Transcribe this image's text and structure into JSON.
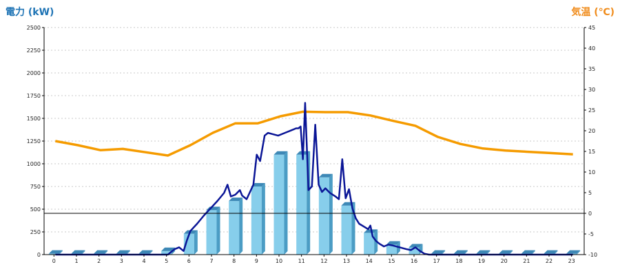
{
  "chart_data": {
    "type": "bar+line",
    "title_left": "電力 (kW)",
    "title_right": "気温 (℃)",
    "colors": {
      "title_left": "#1f74b5",
      "title_right": "#f08c1c",
      "bar_front": "#87ceeb",
      "bar_side": "#4b9cc4",
      "bar_top": "#3d88b6",
      "power_line": "#0a1596",
      "temp_line": "#f59b00",
      "grid": "#c8c8c8",
      "axis": "#000000"
    },
    "x_ticks": [
      "0",
      "1",
      "2",
      "3",
      "4",
      "5",
      "6",
      "7",
      "8",
      "9",
      "10",
      "11",
      "12",
      "13",
      "14",
      "15",
      "16",
      "17",
      "18",
      "19",
      "20",
      "21",
      "22",
      "23"
    ],
    "left_axis": {
      "min": 0,
      "max": 2500,
      "ticks": [
        "0",
        "250",
        "500",
        "750",
        "1000",
        "1250",
        "1500",
        "1750",
        "2000",
        "2250",
        "2500"
      ]
    },
    "right_axis": {
      "min": -10,
      "max": 45,
      "ticks": [
        "-10",
        "-5",
        "0",
        "5",
        "10",
        "15",
        "20",
        "25",
        "30",
        "35",
        "40",
        "45"
      ]
    },
    "hourly_power_bars": {
      "unit": "kW",
      "values": [
        10,
        10,
        10,
        10,
        10,
        40,
        230,
        490,
        590,
        750,
        1100,
        1100,
        850,
        540,
        240,
        110,
        80,
        10,
        10,
        10,
        10,
        10,
        10,
        10
      ]
    },
    "power_line": {
      "unit": "kW",
      "x": [
        0,
        5.0,
        5.3,
        5.5,
        5.7,
        5.85,
        6.0,
        6.3,
        6.6,
        6.9,
        7.2,
        7.5,
        7.65,
        7.8,
        8.0,
        8.2,
        8.3,
        8.5,
        8.8,
        8.95,
        9.1,
        9.3,
        9.45,
        9.6,
        9.9,
        10.2,
        10.5,
        10.7,
        10.8,
        10.9,
        11.0,
        11.1,
        11.25,
        11.4,
        11.55,
        11.7,
        11.85,
        12.0,
        12.2,
        12.45,
        12.6,
        12.75,
        12.9,
        13.05,
        13.2,
        13.35,
        13.5,
        13.7,
        13.9,
        14.0,
        14.1,
        14.25,
        14.4,
        14.6,
        14.8,
        15.0,
        15.3,
        15.6,
        15.8,
        16.0,
        16.2,
        16.4,
        16.6,
        17.0,
        18.0,
        20.0,
        23.0
      ],
      "y": [
        0,
        0,
        60,
        80,
        40,
        160,
        260,
        340,
        430,
        510,
        590,
        680,
        770,
        640,
        660,
        710,
        650,
        610,
        770,
        1100,
        1030,
        1310,
        1340,
        1330,
        1310,
        1340,
        1370,
        1390,
        1390,
        1410,
        1050,
        1670,
        710,
        750,
        1430,
        770,
        690,
        730,
        680,
        640,
        610,
        1050,
        620,
        720,
        510,
        400,
        340,
        310,
        280,
        320,
        200,
        150,
        120,
        90,
        110,
        100,
        80,
        60,
        50,
        80,
        40,
        10,
        0,
        0,
        0,
        0,
        0
      ]
    },
    "temperature_line": {
      "unit": "℃",
      "x": [
        0,
        1,
        2,
        3,
        4,
        5,
        6,
        7,
        8,
        9,
        10,
        11,
        12,
        13,
        14,
        15,
        16,
        17,
        18,
        19,
        20,
        21,
        22,
        23
      ],
      "y": [
        17.5,
        16.5,
        15.3,
        15.6,
        14.8,
        14.0,
        16.5,
        19.5,
        21.8,
        21.8,
        23.5,
        24.6,
        24.5,
        24.5,
        23.7,
        22.4,
        21.2,
        18.5,
        16.8,
        15.7,
        15.2,
        14.9,
        14.6,
        14.3
      ]
    }
  }
}
